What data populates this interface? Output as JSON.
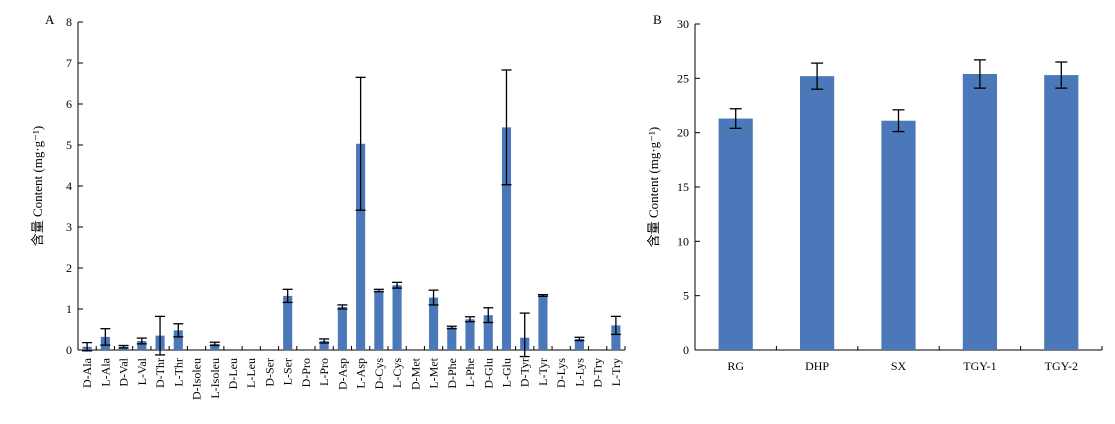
{
  "chart_data": [
    {
      "type": "bar",
      "panel_label": "A",
      "title": "",
      "xlabel": "",
      "ylabel": "含量 Content (mg·g⁻¹)",
      "ylim": [
        0,
        8
      ],
      "yticks": [
        0,
        1,
        2,
        3,
        4,
        5,
        6,
        7,
        8
      ],
      "grid": false,
      "color": "#4a78b8",
      "categories": [
        "D-Ala",
        "L-Ala",
        "D-Val",
        "L-Val",
        "D-Thr",
        "L-Thr",
        "D-Isoleu",
        "L-Isoleu",
        "D-Leu",
        "L-Leu",
        "D-Ser",
        "L-Ser",
        "D-Pro",
        "L-Pro",
        "D-Asp",
        "L-Asp",
        "D-Cys",
        "L-Cys",
        "D-Met",
        "L-Met",
        "D-Phe",
        "L-Phe",
        "D-Glu",
        "L-Glu",
        "D-Tyr",
        "L-Tyr",
        "D-Lys",
        "L-Lys",
        "D-Try",
        "L-Try"
      ],
      "values": [
        0.08,
        0.32,
        0.08,
        0.22,
        0.35,
        0.48,
        0.0,
        0.15,
        0.0,
        0.0,
        0.0,
        1.32,
        0.0,
        0.22,
        1.05,
        5.03,
        1.45,
        1.58,
        0.0,
        1.28,
        0.55,
        0.75,
        0.85,
        5.43,
        0.3,
        1.33,
        0.0,
        0.27,
        0.0,
        0.6
      ],
      "errors": [
        0.1,
        0.2,
        0.03,
        0.07,
        0.47,
        0.16,
        0.0,
        0.04,
        0.0,
        0.0,
        0.0,
        0.16,
        0.0,
        0.05,
        0.05,
        1.62,
        0.03,
        0.07,
        0.0,
        0.18,
        0.03,
        0.06,
        0.18,
        1.4,
        0.6,
        0.02,
        0.0,
        0.04,
        0.0,
        0.22
      ]
    },
    {
      "type": "bar",
      "panel_label": "B",
      "title": "",
      "xlabel": "",
      "ylabel": "含量 Content (mg·g⁻¹)",
      "ylim": [
        0,
        30
      ],
      "yticks": [
        0,
        5,
        10,
        15,
        20,
        25,
        30
      ],
      "grid": false,
      "color": "#4a78b8",
      "categories": [
        "RG",
        "DHP",
        "SX",
        "TGY-1",
        "TGY-2"
      ],
      "values": [
        21.3,
        25.2,
        21.1,
        25.4,
        25.3
      ],
      "errors": [
        0.9,
        1.2,
        1.0,
        1.3,
        1.2
      ]
    }
  ]
}
